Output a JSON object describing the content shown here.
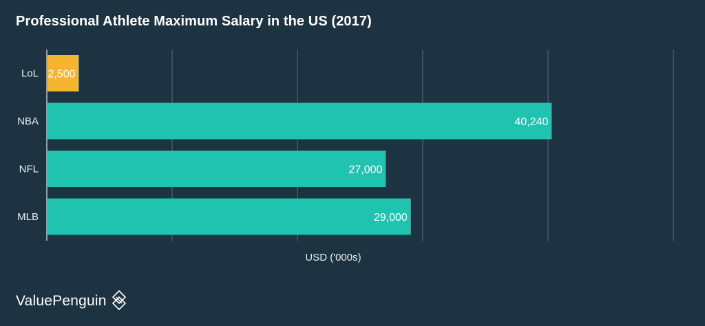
{
  "chart_data": {
    "type": "bar",
    "orientation": "horizontal",
    "title": "Professional Athlete Maximum Salary in the US (2017)",
    "xlabel": "USD ('000s)",
    "ylabel": "",
    "categories": [
      "LoL",
      "NBA",
      "NFL",
      "MLB"
    ],
    "values": [
      2500,
      40240,
      27000,
      29000
    ],
    "labels": [
      "2,500",
      "40,240",
      "27,000",
      "29,000"
    ],
    "colors": [
      "#f6b52e",
      "#1fc3b0",
      "#1fc3b0",
      "#1fc3b0"
    ],
    "xlim": [
      0,
      50000
    ],
    "gridlines": [
      0,
      10000,
      20000,
      30000,
      40000,
      50000
    ],
    "grid": true,
    "legend": "none"
  },
  "brand": {
    "name": "ValuePenguin"
  },
  "theme": {
    "background": "#1d3341",
    "gridline": "#5b6d78",
    "text": "#ffffff"
  }
}
